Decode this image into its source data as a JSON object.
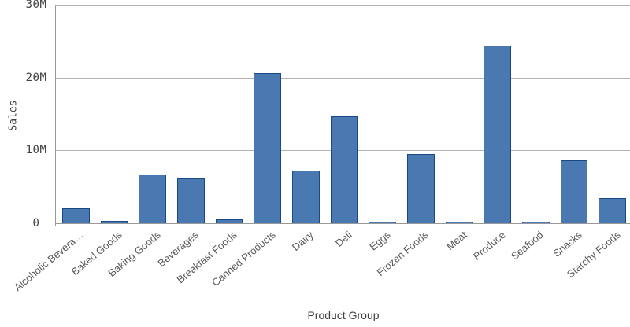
{
  "chart": {
    "background": "#ffffff",
    "bar_fill": "#4a79b1",
    "bar_border": "#174a87",
    "gridline_color": "#b3b3b3",
    "axis_line_color": "#999999",
    "tick_text_color": "#404040",
    "category_text_color": "#595959",
    "axis_title_color": "#404040"
  },
  "chart_data": {
    "type": "bar",
    "title": "",
    "xlabel": "Product Group",
    "ylabel": "Sales",
    "categories": [
      "Alcoholic Bevera…",
      "Baked Goods",
      "Baking Goods",
      "Beverages",
      "Breakfast Foods",
      "Canned Products",
      "Dairy",
      "Deli",
      "Eggs",
      "Frozen Foods",
      "Meat",
      "Produce",
      "Seafood",
      "Snacks",
      "Starchy Foods"
    ],
    "values_millions": [
      2.1,
      0.35,
      6.7,
      6.2,
      0.55,
      20.6,
      7.2,
      14.7,
      0.25,
      9.5,
      0.15,
      24.4,
      0.1,
      8.6,
      3.5
    ],
    "y_ticks": [
      {
        "value": 0,
        "label": "0"
      },
      {
        "value": 10,
        "label": "10M"
      },
      {
        "value": 20,
        "label": "20M"
      },
      {
        "value": 30,
        "label": "30M"
      }
    ],
    "ylim": [
      0,
      30
    ],
    "grid": "horizontal",
    "legend": "none"
  }
}
